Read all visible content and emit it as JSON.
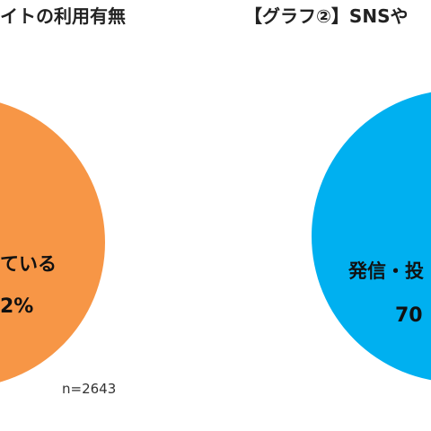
{
  "chart_data": [
    {
      "type": "pie",
      "title": "イトの利用有無",
      "slices": [
        {
          "label": "ている",
          "value_text": "2%",
          "color": "#F79646"
        }
      ],
      "note": "n=2643"
    },
    {
      "type": "pie",
      "title": "【グラフ②】SNSや",
      "slices": [
        {
          "label": "発信・投",
          "value_text": "70",
          "color": "#00B0F0"
        }
      ]
    }
  ]
}
